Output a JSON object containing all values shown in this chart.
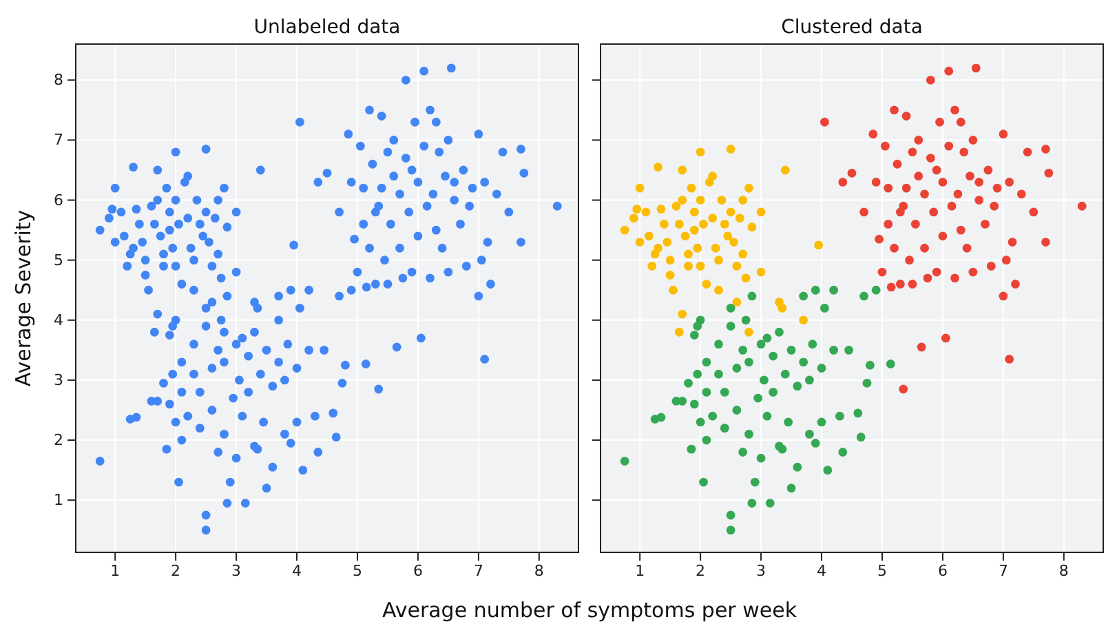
{
  "chart_data": [
    {
      "type": "scatter",
      "title": "Unlabeled data",
      "xlabel": "Average number of symptoms per week",
      "ylabel": "Average Severity",
      "xlim": [
        0.35,
        8.65
      ],
      "ylim": [
        0.13,
        8.6
      ],
      "xticks": [
        1,
        2,
        3,
        4,
        5,
        6,
        7,
        8
      ],
      "yticks": [
        1,
        2,
        3,
        4,
        5,
        6,
        7,
        8
      ],
      "grid": true,
      "marker": "circle",
      "series": [
        {
          "color": "#4285f4",
          "x": [
            0.75,
            0.9,
            0.95,
            1.0,
            1.0,
            1.1,
            1.15,
            1.2,
            1.25,
            1.3,
            1.35,
            1.4,
            1.45,
            1.5,
            1.5,
            1.55,
            1.6,
            1.65,
            1.7,
            1.7,
            1.75,
            1.8,
            1.8,
            1.85,
            1.9,
            1.9,
            1.95,
            2.0,
            2.0,
            2.0,
            2.05,
            2.1,
            2.15,
            2.2,
            2.2,
            2.25,
            2.3,
            2.3,
            2.35,
            2.4,
            2.45,
            2.5,
            2.5,
            2.55,
            2.6,
            2.6,
            2.65,
            2.7,
            2.7,
            2.75,
            2.8,
            2.85,
            3.0,
            3.0,
            3.3,
            3.35,
            3.4,
            3.7,
            1.65,
            1.7,
            2.8,
            3.95,
            1.3
          ],
          "values": [
            5.5,
            5.7,
            5.85,
            6.2,
            5.3,
            5.8,
            5.4,
            4.9,
            5.1,
            5.2,
            5.85,
            5.6,
            5.3,
            5.0,
            4.75,
            4.5,
            5.9,
            5.6,
            6.5,
            6.0,
            5.4,
            5.1,
            4.9,
            6.2,
            5.8,
            5.5,
            5.2,
            6.8,
            6.0,
            4.9,
            5.6,
            4.6,
            6.3,
            6.4,
            5.7,
            5.2,
            5.0,
            4.5,
            6.0,
            5.6,
            5.4,
            6.85,
            5.8,
            5.3,
            4.9,
            4.3,
            5.7,
            6.0,
            5.1,
            4.7,
            6.2,
            5.55,
            5.8,
            4.8,
            4.3,
            4.2,
            6.5,
            4.0,
            3.8,
            4.1,
            3.8,
            5.25,
            6.55
          ]
        },
        {
          "color": "#4285f4",
          "x": [
            0.75,
            1.25,
            1.35,
            1.6,
            1.7,
            1.8,
            1.9,
            2.0,
            1.85,
            1.9,
            1.95,
            2.0,
            2.05,
            2.1,
            2.1,
            2.1,
            2.2,
            2.3,
            2.3,
            2.4,
            2.4,
            2.5,
            2.5,
            2.6,
            2.6,
            2.7,
            2.7,
            2.75,
            2.8,
            2.8,
            2.85,
            2.9,
            2.95,
            3.0,
            3.0,
            3.05,
            3.1,
            3.1,
            3.15,
            3.2,
            3.2,
            3.3,
            3.35,
            3.4,
            3.45,
            3.5,
            3.5,
            3.6,
            3.6,
            3.7,
            3.7,
            3.8,
            3.8,
            3.85,
            3.9,
            3.9,
            4.0,
            4.0,
            4.05,
            4.1,
            4.2,
            4.3,
            4.35,
            4.6,
            4.65,
            4.7,
            4.8,
            2.5,
            2.5,
            2.85,
            3.3,
            4.2,
            1.95,
            4.9,
            4.75,
            5.14,
            4.45
          ],
          "values": [
            1.65,
            2.35,
            2.38,
            2.65,
            2.65,
            2.95,
            2.6,
            2.3,
            1.85,
            3.75,
            3.9,
            4.0,
            1.3,
            2.0,
            2.8,
            3.3,
            2.4,
            3.1,
            3.6,
            2.2,
            2.8,
            3.9,
            4.2,
            3.2,
            2.5,
            1.8,
            3.5,
            4.0,
            3.3,
            2.1,
            4.4,
            1.3,
            2.7,
            3.6,
            1.7,
            3.0,
            3.7,
            2.4,
            0.95,
            3.4,
            2.8,
            3.8,
            1.85,
            3.1,
            2.3,
            3.5,
            1.2,
            2.9,
            1.55,
            3.3,
            4.4,
            3.0,
            2.1,
            3.6,
            1.95,
            4.5,
            2.3,
            3.2,
            4.2,
            1.5,
            3.5,
            2.4,
            1.8,
            2.45,
            2.05,
            4.4,
            3.25,
            0.5,
            0.75,
            0.95,
            1.9,
            4.5,
            3.1,
            4.5,
            2.95,
            3.27,
            3.5
          ]
        },
        {
          "color": "#4285f4",
          "x": [
            4.05,
            4.35,
            4.5,
            4.7,
            4.85,
            4.9,
            4.95,
            5.0,
            5.05,
            5.1,
            5.1,
            5.15,
            5.2,
            5.2,
            5.25,
            5.3,
            5.35,
            5.4,
            5.4,
            5.45,
            5.5,
            5.5,
            5.55,
            5.6,
            5.6,
            5.65,
            5.7,
            5.7,
            5.75,
            5.8,
            5.8,
            5.85,
            5.9,
            5.95,
            6.0,
            6.0,
            6.05,
            6.1,
            6.1,
            6.15,
            6.2,
            6.2,
            6.25,
            6.3,
            6.35,
            6.4,
            6.45,
            6.5,
            6.5,
            6.55,
            6.6,
            6.7,
            6.75,
            6.8,
            6.85,
            6.9,
            7.0,
            7.0,
            7.05,
            7.1,
            7.1,
            7.15,
            7.2,
            7.3,
            7.4,
            7.5,
            7.7,
            7.7,
            7.75,
            8.3,
            5.9,
            6.6,
            6.3,
            5.3,
            5.35
          ],
          "values": [
            7.3,
            6.3,
            6.45,
            5.8,
            7.1,
            6.3,
            5.35,
            4.8,
            6.9,
            6.2,
            5.6,
            4.55,
            7.5,
            5.2,
            6.6,
            4.6,
            5.9,
            7.4,
            6.2,
            5.0,
            6.8,
            4.6,
            5.6,
            7.0,
            6.4,
            3.55,
            6.1,
            5.2,
            4.7,
            8.0,
            6.7,
            5.8,
            4.8,
            7.3,
            6.3,
            5.4,
            3.7,
            8.15,
            6.9,
            5.9,
            4.7,
            7.5,
            6.1,
            5.5,
            6.8,
            5.2,
            6.4,
            7.0,
            4.8,
            8.2,
            6.0,
            5.6,
            6.5,
            4.9,
            5.9,
            6.2,
            7.1,
            4.4,
            5.0,
            6.3,
            3.35,
            5.3,
            4.6,
            6.1,
            6.8,
            5.8,
            6.85,
            5.3,
            6.45,
            5.9,
            6.5,
            6.3,
            7.3,
            5.8,
            2.85
          ]
        }
      ]
    },
    {
      "type": "scatter",
      "title": "Clustered data",
      "xlim": [
        0.35,
        8.65
      ],
      "ylim": [
        0.13,
        8.6
      ],
      "xticks": [
        1,
        2,
        3,
        4,
        5,
        6,
        7,
        8
      ],
      "yticks": [
        1,
        2,
        3,
        4,
        5,
        6,
        7,
        8
      ],
      "tick_labels": "x",
      "grid": true,
      "marker": "circle",
      "series": [
        {
          "color": "#fbbc04",
          "x": [
            0.75,
            0.9,
            0.95,
            1.0,
            1.0,
            1.1,
            1.15,
            1.2,
            1.25,
            1.3,
            1.35,
            1.4,
            1.45,
            1.5,
            1.5,
            1.55,
            1.6,
            1.65,
            1.7,
            1.7,
            1.75,
            1.8,
            1.8,
            1.85,
            1.9,
            1.9,
            1.95,
            2.0,
            2.0,
            2.0,
            2.05,
            2.1,
            2.15,
            2.2,
            2.2,
            2.25,
            2.3,
            2.3,
            2.35,
            2.4,
            2.45,
            2.5,
            2.5,
            2.55,
            2.6,
            2.6,
            2.65,
            2.7,
            2.7,
            2.75,
            2.8,
            2.85,
            3.0,
            3.0,
            3.3,
            3.35,
            3.4,
            3.7,
            1.65,
            1.7,
            2.8,
            3.95,
            1.3
          ],
          "values": [
            5.5,
            5.7,
            5.85,
            6.2,
            5.3,
            5.8,
            5.4,
            4.9,
            5.1,
            5.2,
            5.85,
            5.6,
            5.3,
            5.0,
            4.75,
            4.5,
            5.9,
            5.6,
            6.5,
            6.0,
            5.4,
            5.1,
            4.9,
            6.2,
            5.8,
            5.5,
            5.2,
            6.8,
            6.0,
            4.9,
            5.6,
            4.6,
            6.3,
            6.4,
            5.7,
            5.2,
            5.0,
            4.5,
            6.0,
            5.6,
            5.4,
            6.85,
            5.8,
            5.3,
            4.9,
            4.3,
            5.7,
            6.0,
            5.1,
            4.7,
            6.2,
            5.55,
            5.8,
            4.8,
            4.3,
            4.2,
            6.5,
            4.0,
            3.8,
            4.1,
            3.8,
            5.25,
            6.55
          ]
        },
        {
          "color": "#34a853",
          "x": [
            0.75,
            1.25,
            1.35,
            1.6,
            1.7,
            1.8,
            1.9,
            2.0,
            1.85,
            1.9,
            1.95,
            2.0,
            2.05,
            2.1,
            2.1,
            2.1,
            2.2,
            2.3,
            2.3,
            2.4,
            2.4,
            2.5,
            2.5,
            2.6,
            2.6,
            2.7,
            2.7,
            2.75,
            2.8,
            2.8,
            2.85,
            2.9,
            2.95,
            3.0,
            3.0,
            3.05,
            3.1,
            3.1,
            3.15,
            3.2,
            3.2,
            3.3,
            3.35,
            3.4,
            3.45,
            3.5,
            3.5,
            3.6,
            3.6,
            3.7,
            3.7,
            3.8,
            3.8,
            3.85,
            3.9,
            3.9,
            4.0,
            4.0,
            4.05,
            4.1,
            4.2,
            4.3,
            4.35,
            4.6,
            4.65,
            4.7,
            4.8,
            2.5,
            2.5,
            2.85,
            3.3,
            4.2,
            1.95,
            4.9,
            4.75,
            5.14,
            4.45
          ],
          "values": [
            1.65,
            2.35,
            2.38,
            2.65,
            2.65,
            2.95,
            2.6,
            2.3,
            1.85,
            3.75,
            3.9,
            4.0,
            1.3,
            2.0,
            2.8,
            3.3,
            2.4,
            3.1,
            3.6,
            2.2,
            2.8,
            3.9,
            4.2,
            3.2,
            2.5,
            1.8,
            3.5,
            4.0,
            3.3,
            2.1,
            4.4,
            1.3,
            2.7,
            3.6,
            1.7,
            3.0,
            3.7,
            2.4,
            0.95,
            3.4,
            2.8,
            3.8,
            1.85,
            3.1,
            2.3,
            3.5,
            1.2,
            2.9,
            1.55,
            3.3,
            4.4,
            3.0,
            2.1,
            3.6,
            1.95,
            4.5,
            2.3,
            3.2,
            4.2,
            1.5,
            3.5,
            2.4,
            1.8,
            2.45,
            2.05,
            4.4,
            3.25,
            0.5,
            0.75,
            0.95,
            1.9,
            4.5,
            3.1,
            4.5,
            2.95,
            3.27,
            3.5
          ]
        },
        {
          "color": "#ea4335",
          "x": [
            4.05,
            4.35,
            4.5,
            4.7,
            4.85,
            4.9,
            4.95,
            5.0,
            5.05,
            5.1,
            5.1,
            5.15,
            5.2,
            5.2,
            5.25,
            5.3,
            5.35,
            5.4,
            5.4,
            5.45,
            5.5,
            5.5,
            5.55,
            5.6,
            5.6,
            5.65,
            5.7,
            5.7,
            5.75,
            5.8,
            5.8,
            5.85,
            5.9,
            5.95,
            6.0,
            6.0,
            6.05,
            6.1,
            6.1,
            6.15,
            6.2,
            6.2,
            6.25,
            6.3,
            6.35,
            6.4,
            6.45,
            6.5,
            6.5,
            6.55,
            6.6,
            6.7,
            6.75,
            6.8,
            6.85,
            6.9,
            7.0,
            7.0,
            7.05,
            7.1,
            7.1,
            7.15,
            7.2,
            7.3,
            7.4,
            7.5,
            7.7,
            7.7,
            7.75,
            8.3,
            5.9,
            6.6,
            6.3,
            5.3,
            5.35
          ],
          "values": [
            7.3,
            6.3,
            6.45,
            5.8,
            7.1,
            6.3,
            5.35,
            4.8,
            6.9,
            6.2,
            5.6,
            4.55,
            7.5,
            5.2,
            6.6,
            4.6,
            5.9,
            7.4,
            6.2,
            5.0,
            6.8,
            4.6,
            5.6,
            7.0,
            6.4,
            3.55,
            6.1,
            5.2,
            4.7,
            8.0,
            6.7,
            5.8,
            4.8,
            7.3,
            6.3,
            5.4,
            3.7,
            8.15,
            6.9,
            5.9,
            4.7,
            7.5,
            6.1,
            5.5,
            6.8,
            5.2,
            6.4,
            7.0,
            4.8,
            8.2,
            6.0,
            5.6,
            6.5,
            4.9,
            5.9,
            6.2,
            7.1,
            4.4,
            5.0,
            6.3,
            3.35,
            5.3,
            4.6,
            6.1,
            6.8,
            5.8,
            6.85,
            5.3,
            6.45,
            5.9,
            6.5,
            6.3,
            7.3,
            5.8,
            2.85
          ]
        }
      ]
    }
  ]
}
